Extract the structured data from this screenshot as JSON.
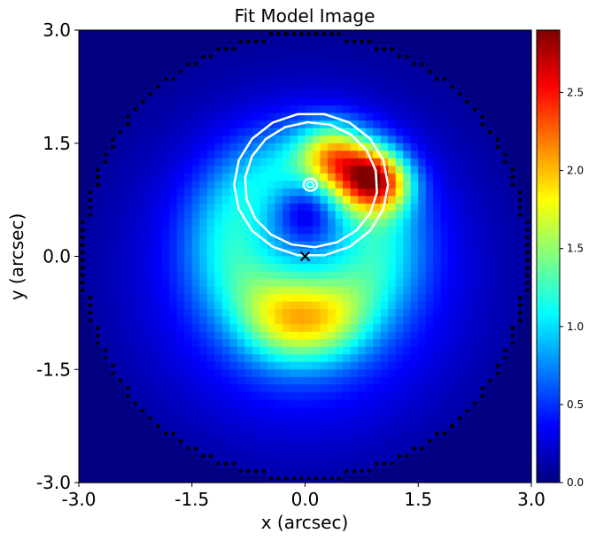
{
  "chart_data": {
    "type": "heatmap",
    "title": "Fit Model Image",
    "xlabel": "x (arcsec)",
    "ylabel": "y (arcsec)",
    "xlim": [
      -3.0,
      3.0
    ],
    "ylim": [
      -3.0,
      3.0
    ],
    "xticks": [
      -3.0,
      -1.5,
      0.0,
      1.5,
      3.0
    ],
    "yticks": [
      -3.0,
      -1.5,
      0.0,
      1.5,
      3.0
    ],
    "xtick_labels": [
      "-3.0",
      "-1.5",
      "0.0",
      "1.5",
      "3.0"
    ],
    "ytick_labels": [
      "-3.0",
      "-1.5",
      "0.0",
      "1.5",
      "3.0"
    ],
    "colormap": "jet",
    "colorbar": {
      "vmin": 0.0,
      "vmax": 2.9,
      "ticks": [
        0.0,
        0.5,
        1.0,
        1.5,
        2.0,
        2.5
      ],
      "tick_labels": [
        "0.0",
        "0.5",
        "1.0",
        "1.5",
        "2.0",
        "2.5"
      ]
    },
    "grid": false,
    "mask_radius_arcsec": 3.0,
    "pixel_scale_arcsec": 0.1,
    "background_value": 0.0,
    "components": [
      {
        "kind": "gaussian",
        "amp": 0.75,
        "cx": 0.0,
        "cy": -0.2,
        "sigma": 1.45
      },
      {
        "kind": "ring",
        "amp": 0.62,
        "cx": 0.0,
        "cy": 0.2,
        "radius": 1.0,
        "width": 0.42
      },
      {
        "kind": "gaussian",
        "amp": 0.62,
        "cx": -0.25,
        "cy": -0.85,
        "sigma": 0.42
      },
      {
        "kind": "gaussian",
        "amp": 0.38,
        "cx": 0.35,
        "cy": -0.85,
        "sigma": 0.38
      },
      {
        "kind": "gaussian",
        "amp": 1.05,
        "cx": 0.35,
        "cy": 1.35,
        "sigma": 0.3
      },
      {
        "kind": "gaussian",
        "amp": 1.65,
        "cx": 0.85,
        "cy": 1.05,
        "sigma": 0.3
      },
      {
        "kind": "gaussian",
        "amp": 0.55,
        "cx": 1.15,
        "cy": 0.95,
        "sigma": 0.25
      },
      {
        "kind": "gaussian",
        "amp": -0.55,
        "cx": 0.0,
        "cy": 0.6,
        "sigma": 0.28
      }
    ],
    "critical_curves": [
      {
        "cx": 0.08,
        "cy": 0.95,
        "rx": 1.02,
        "ry": 0.95
      },
      {
        "cx": 0.08,
        "cy": 0.95,
        "rx": 0.88,
        "ry": 0.83
      }
    ],
    "caustic": {
      "cx": 0.07,
      "cy": 0.95,
      "rx": 0.09,
      "ry": 0.08
    },
    "centre_marker": {
      "x": 0.0,
      "y": 0.0,
      "symbol": "x"
    }
  }
}
